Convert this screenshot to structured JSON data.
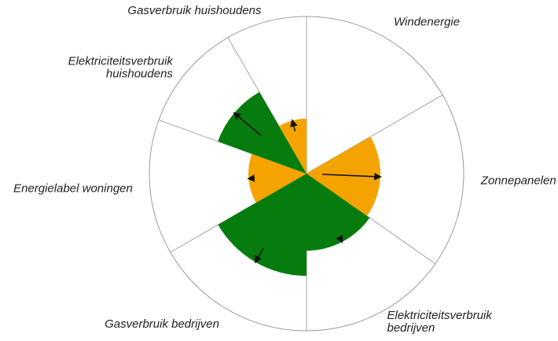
{
  "chart_data": {
    "type": "rose",
    "labels": [
      [
        "Windenergie"
      ],
      [
        "Zonnepanelen"
      ],
      [
        "Elektriciteitsverbruik",
        "bedrijven"
      ],
      [
        "Gasverbruik bedrijven"
      ],
      [
        "Energielabel woningen"
      ],
      [
        "Elektriciteitsverbruik",
        "huishoudens"
      ],
      [
        "Gasverbruik huishoudens"
      ]
    ],
    "spans": [
      60,
      65,
      55,
      60,
      50,
      40,
      30
    ],
    "values": [
      0,
      47,
      49,
      65,
      37,
      60,
      35
    ],
    "previous": [
      null,
      10,
      47,
      55,
      35,
      38,
      28
    ],
    "colors": [
      "#f5a300",
      "#f5a300",
      "#067c0e",
      "#067c0e",
      "#f5a300",
      "#067c0e",
      "#f5a300"
    ],
    "rlim": [
      0,
      100
    ]
  }
}
